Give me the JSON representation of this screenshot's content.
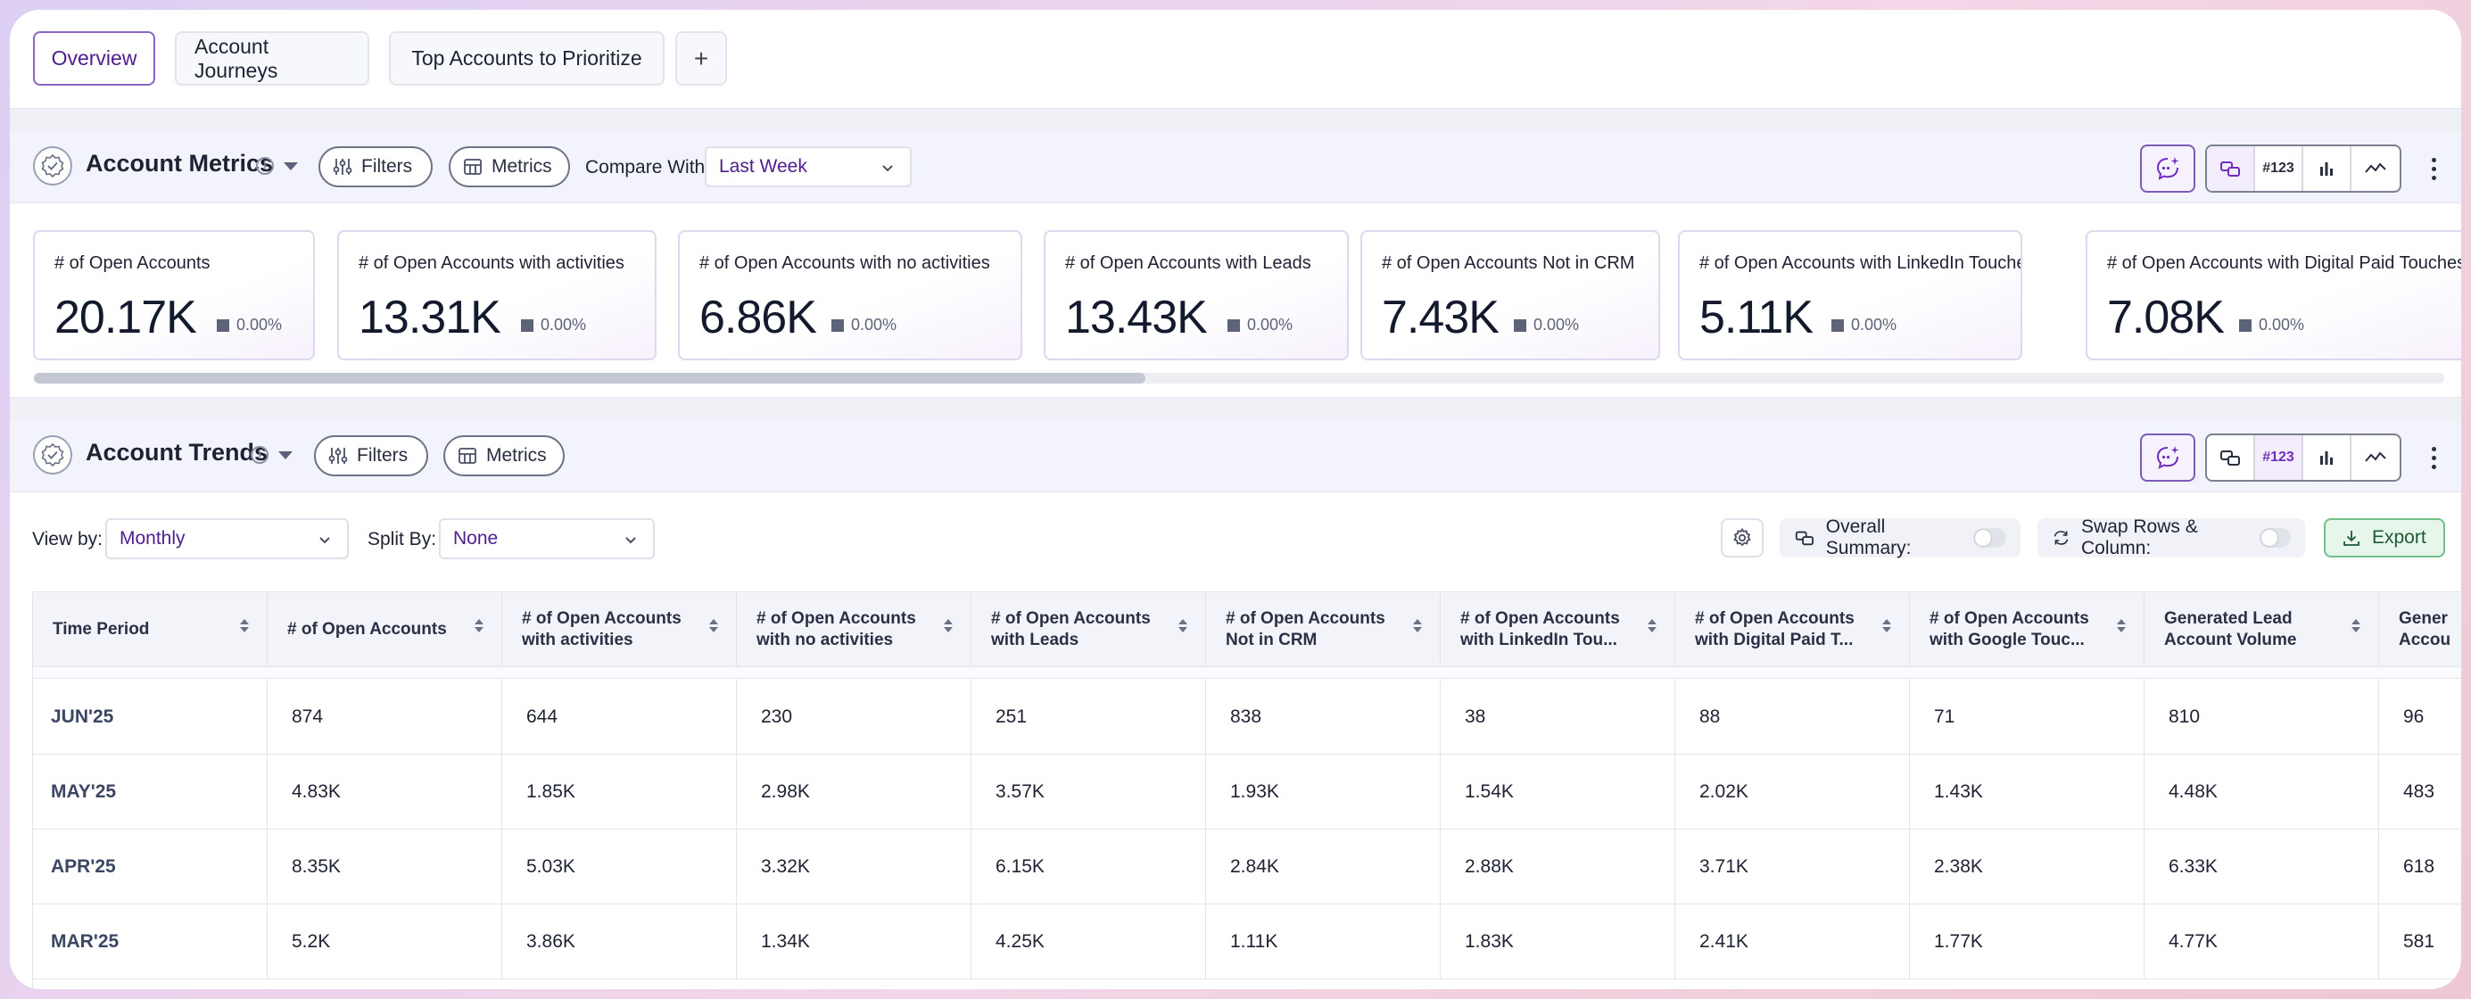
{
  "tabs": [
    {
      "label": "Overview",
      "active": true
    },
    {
      "label": "Account Journeys",
      "active": false
    },
    {
      "label": "Top Accounts to Prioritize",
      "active": false
    }
  ],
  "add_tab_label": "+",
  "metrics_panel": {
    "title": "Account Metrics",
    "info": "i",
    "filters_label": "Filters",
    "metrics_label": "Metrics",
    "compare_label": "Compare With:",
    "compare_value": "Last Week",
    "view_buttons": [
      "split-icon",
      "#123",
      "bar-chart-icon",
      "line-chart-icon"
    ],
    "selected_view": "split-icon"
  },
  "cards": [
    {
      "title": "# of Open Accounts",
      "value": "20.17K",
      "delta": "0.00%"
    },
    {
      "title": "# of Open Accounts with activities",
      "value": "13.31K",
      "delta": "0.00%"
    },
    {
      "title": "# of Open Accounts with no activities",
      "value": "6.86K",
      "delta": "0.00%"
    },
    {
      "title": "# of Open Accounts with Leads",
      "value": "13.43K",
      "delta": "0.00%"
    },
    {
      "title": "# of Open Accounts Not in CRM",
      "value": "7.43K",
      "delta": "0.00%"
    },
    {
      "title": "# of Open Accounts with LinkedIn Touches",
      "value": "5.11K",
      "delta": "0.00%"
    },
    {
      "title": "# of Open Accounts with Digital Paid Touches",
      "value": "7.08K",
      "delta": "0.00%"
    }
  ],
  "trends_panel": {
    "title": "Account Trends",
    "info": "i",
    "filters_label": "Filters",
    "metrics_label": "Metrics",
    "number_button": "#123",
    "selected_view": "#123"
  },
  "toolbar": {
    "view_by_label": "View by:",
    "view_by_value": "Monthly",
    "split_by_label": "Split By:",
    "split_by_value": "None",
    "overall_summary_label": "Overall Summary:",
    "overall_summary_on": false,
    "swap_label": "Swap Rows & Column:",
    "swap_on": false,
    "export_label": "Export"
  },
  "table": {
    "columns": [
      [
        "Time Period"
      ],
      [
        "# of Open Accounts"
      ],
      [
        "# of Open Accounts",
        "with activities"
      ],
      [
        "# of Open Accounts",
        "with no activities"
      ],
      [
        "# of Open Accounts",
        "with Leads"
      ],
      [
        "# of Open Accounts",
        "Not in CRM"
      ],
      [
        "# of Open Accounts",
        "with LinkedIn Tou..."
      ],
      [
        "# of Open Accounts",
        "with Digital Paid T..."
      ],
      [
        "# of Open Accounts",
        "with Google Touc..."
      ],
      [
        "Generated Lead",
        "Account Volume"
      ],
      [
        "Gener",
        "Accou"
      ]
    ],
    "rows": [
      [
        "JUN'25",
        "874",
        "644",
        "230",
        "251",
        "838",
        "38",
        "88",
        "71",
        "810",
        "96"
      ],
      [
        "MAY'25",
        "4.83K",
        "1.85K",
        "2.98K",
        "3.57K",
        "1.93K",
        "1.54K",
        "2.02K",
        "1.43K",
        "4.48K",
        "483"
      ],
      [
        "APR'25",
        "8.35K",
        "5.03K",
        "3.32K",
        "6.15K",
        "2.84K",
        "2.88K",
        "3.71K",
        "2.38K",
        "6.33K",
        "618"
      ],
      [
        "MAR'25",
        "5.2K",
        "3.86K",
        "1.34K",
        "4.25K",
        "1.11K",
        "1.83K",
        "2.41K",
        "1.77K",
        "4.77K",
        "581"
      ]
    ]
  },
  "colors": {
    "accent": "#4e1d8e",
    "panel_header_bg": "#f3f3fb",
    "export_bg": "#e6f6ea",
    "export_border": "#6fc08a"
  }
}
